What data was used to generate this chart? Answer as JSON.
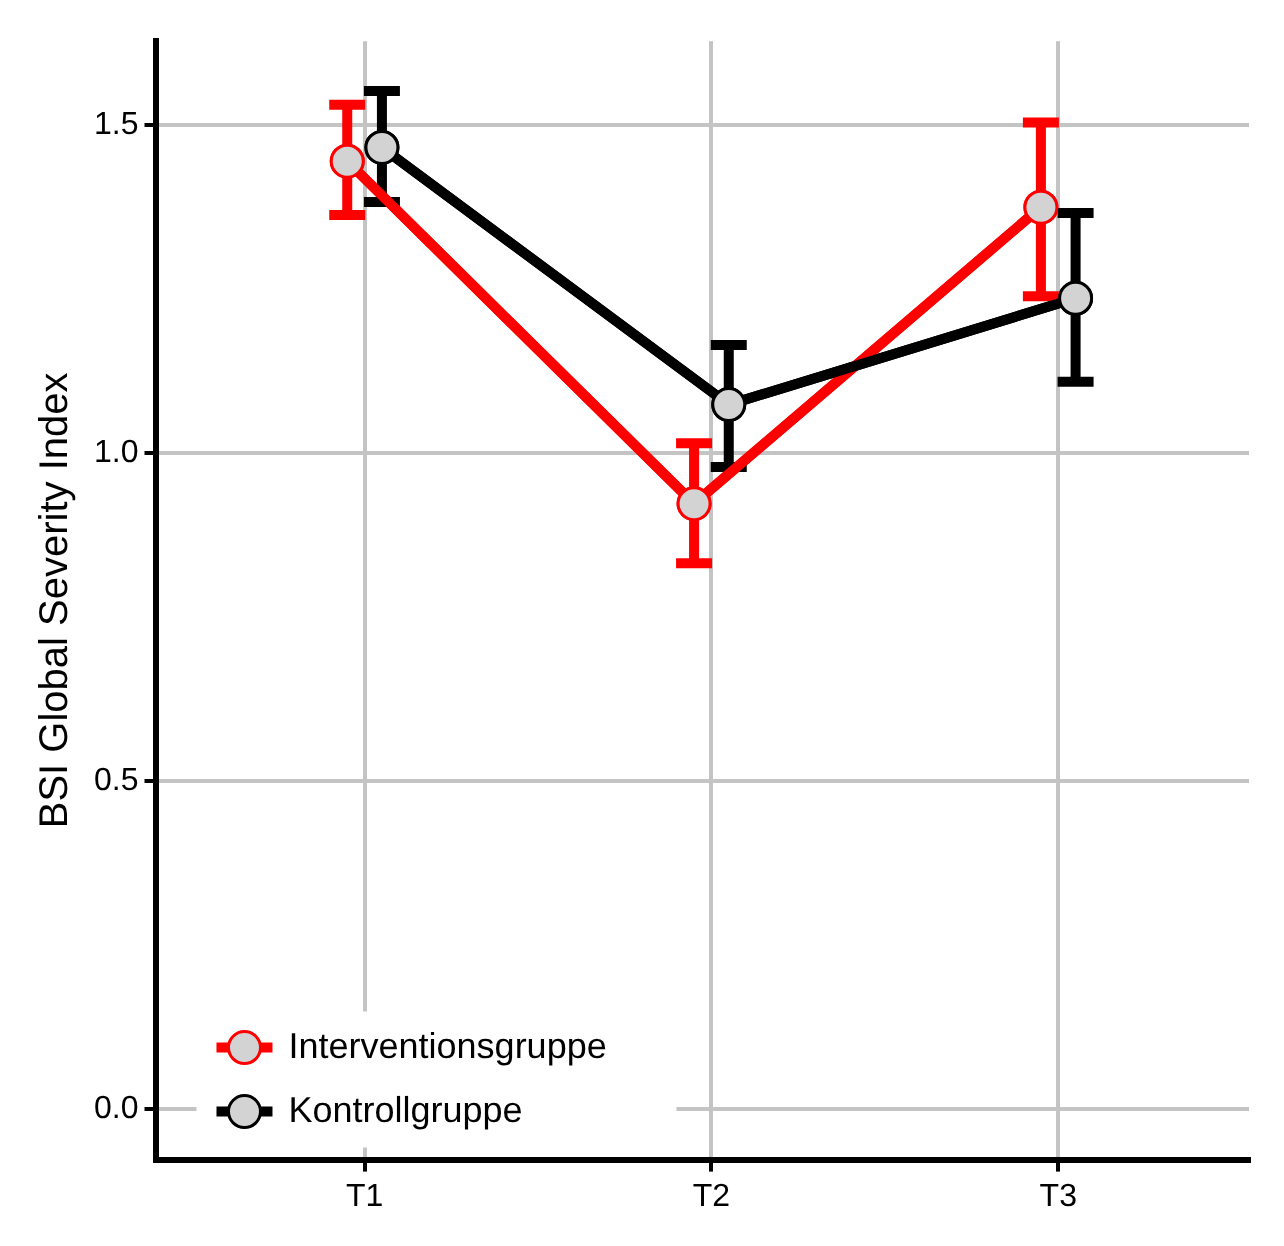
{
  "chart_data": {
    "type": "line",
    "ylabel": "BSI Global Severity Index",
    "categories": [
      "T1",
      "T2",
      "T3"
    ],
    "series": [
      {
        "name": "Interventionsgruppe",
        "color": "#ff0000",
        "values": [
          1.445,
          0.923,
          1.375
        ],
        "errors": [
          [
            1.363,
            1.531
          ],
          [
            0.832,
            1.015
          ],
          [
            1.239,
            1.504
          ]
        ]
      },
      {
        "name": "Kontrollgruppe",
        "color": "#000000",
        "values": [
          1.466,
          1.074,
          1.236
        ],
        "errors": [
          [
            1.383,
            1.552
          ],
          [
            0.979,
            1.165
          ],
          [
            1.109,
            1.366
          ]
        ]
      }
    ],
    "ylim": [
      -0.077,
      1.628
    ],
    "yticks": [
      {
        "value": 0,
        "label": "0.0"
      },
      {
        "value": 0.5,
        "label": "0.5"
      },
      {
        "value": 1,
        "label": "1.0"
      },
      {
        "value": 1.5,
        "label": "1.5"
      }
    ],
    "grid": true,
    "legend": "bottom left",
    "marker": "circle",
    "line_style": "solid"
  }
}
